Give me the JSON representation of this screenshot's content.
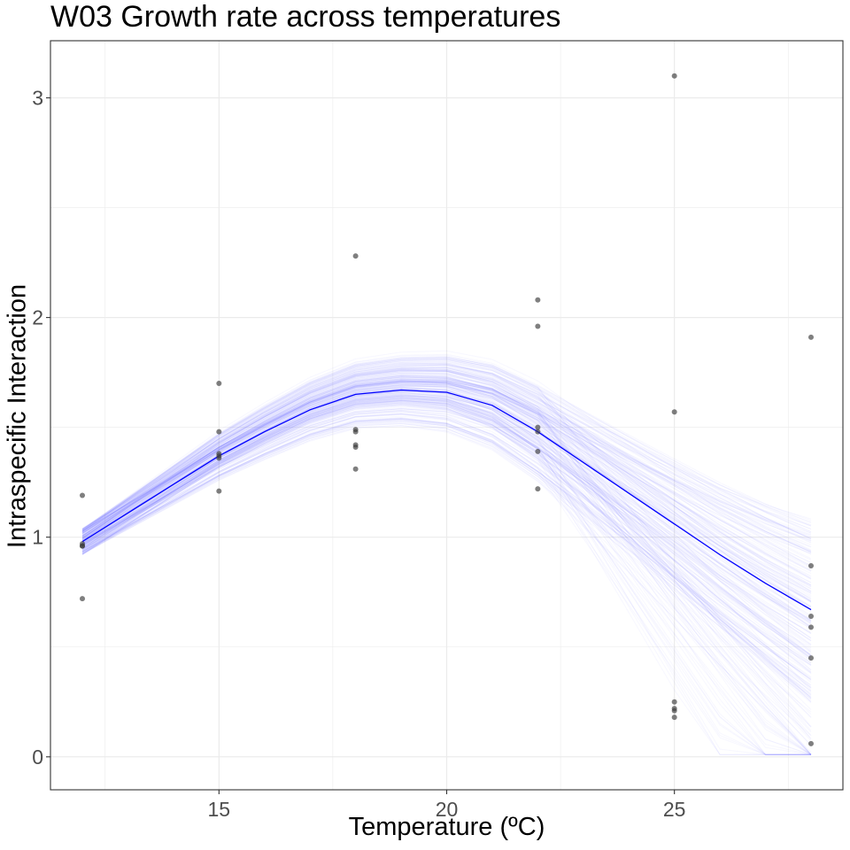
{
  "chart_data": {
    "type": "scatter",
    "title": "W03 Growth rate across temperatures",
    "xlabel": "Temperature (ºC)",
    "ylabel": "Intraspecific Interaction",
    "xlim": [
      11.3,
      28.7
    ],
    "ylim": [
      -0.15,
      3.26
    ],
    "xticks": [
      15,
      20,
      25
    ],
    "yticks": [
      0,
      1,
      2,
      3
    ],
    "grid": true,
    "legend": "none",
    "colors": {
      "points": "#3a3a3a",
      "fit_line": "#0000ff",
      "ensemble": "#6666ff",
      "grid": "#ebebeb",
      "panel_border": "#333333"
    },
    "series": [
      {
        "type": "scatter",
        "points": [
          [
            12,
            1.19
          ],
          [
            12,
            0.97
          ],
          [
            12,
            0.96
          ],
          [
            12,
            0.96
          ],
          [
            12,
            0.72
          ],
          [
            15,
            1.7
          ],
          [
            15,
            1.48
          ],
          [
            15,
            1.38
          ],
          [
            15,
            1.37
          ],
          [
            15,
            1.36
          ],
          [
            15,
            1.21
          ],
          [
            18,
            2.28
          ],
          [
            18,
            1.49
          ],
          [
            18,
            1.48
          ],
          [
            18,
            1.42
          ],
          [
            18,
            1.41
          ],
          [
            18,
            1.31
          ],
          [
            22,
            2.08
          ],
          [
            22,
            1.96
          ],
          [
            22,
            1.5
          ],
          [
            22,
            1.48
          ],
          [
            22,
            1.39
          ],
          [
            22,
            1.22
          ],
          [
            25,
            3.1
          ],
          [
            25,
            1.57
          ],
          [
            25,
            0.25
          ],
          [
            25,
            0.22
          ],
          [
            25,
            0.21
          ],
          [
            25,
            0.18
          ],
          [
            28,
            1.91
          ],
          [
            28,
            0.87
          ],
          [
            28,
            0.64
          ],
          [
            28,
            0.59
          ],
          [
            28,
            0.45
          ],
          [
            28,
            0.06
          ]
        ]
      },
      {
        "type": "line",
        "x": [
          12,
          13,
          14,
          15,
          16,
          17,
          18,
          19,
          20,
          21,
          22,
          23,
          24,
          25,
          26,
          27,
          28
        ],
        "values": [
          0.98,
          1.11,
          1.24,
          1.37,
          1.48,
          1.58,
          1.65,
          1.67,
          1.66,
          1.6,
          1.48,
          1.34,
          1.2,
          1.06,
          0.92,
          0.79,
          0.67
        ]
      }
    ]
  }
}
